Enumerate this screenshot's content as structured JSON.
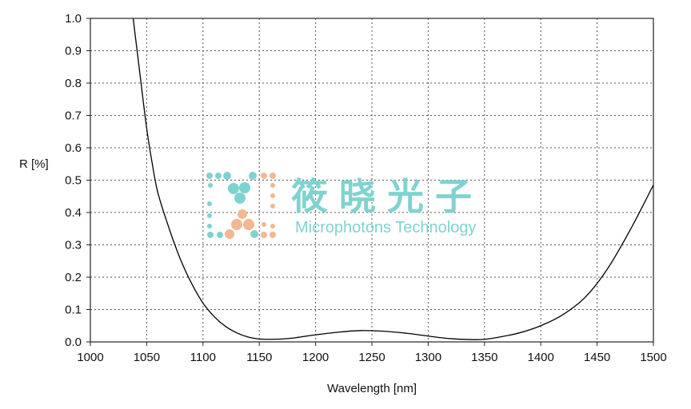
{
  "chart_data": {
    "type": "line",
    "title": "",
    "xlabel": "Wavelength [nm]",
    "ylabel": "R [%]",
    "xlim": [
      1000,
      1500
    ],
    "ylim": [
      0.0,
      1.0
    ],
    "xticks": [
      "1000",
      "1050",
      "1100",
      "1150",
      "1200",
      "1250",
      "1300",
      "1350",
      "1400",
      "1450",
      "1500"
    ],
    "yticks": [
      "0.0",
      "0.1",
      "0.2",
      "0.3",
      "0.4",
      "0.5",
      "0.6",
      "0.7",
      "0.8",
      "0.9",
      "1.0"
    ],
    "grid": true,
    "series": [
      {
        "color": "#000000",
        "x": [
          1038,
          1045,
          1050,
          1055,
          1060,
          1070,
          1080,
          1090,
          1100,
          1110,
          1120,
          1130,
          1140,
          1150,
          1160,
          1170,
          1180,
          1190,
          1200,
          1220,
          1240,
          1260,
          1280,
          1300,
          1320,
          1340,
          1350,
          1360,
          1380,
          1400,
          1420,
          1440,
          1460,
          1480,
          1500
        ],
        "y": [
          1.0,
          0.8,
          0.66,
          0.55,
          0.46,
          0.35,
          0.255,
          0.18,
          0.12,
          0.078,
          0.048,
          0.028,
          0.015,
          0.009,
          0.008,
          0.009,
          0.012,
          0.017,
          0.022,
          0.03,
          0.035,
          0.033,
          0.027,
          0.018,
          0.01,
          0.007,
          0.008,
          0.013,
          0.027,
          0.05,
          0.085,
          0.14,
          0.23,
          0.35,
          0.485
        ]
      }
    ]
  },
  "watermark": {
    "cn_text": "筱晓光子",
    "en_text": "Microphotons Technology",
    "color": "#7fd3cf",
    "accent_color": "#f2b894"
  }
}
